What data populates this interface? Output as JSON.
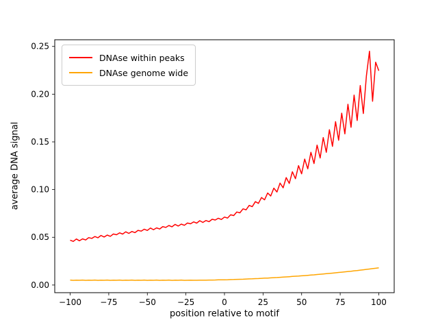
{
  "figure": {
    "background": "#ffffff",
    "frame_color": "#000000"
  },
  "chart_data": {
    "type": "line",
    "title": "",
    "xlabel": "position relative to motif",
    "ylabel": "average DNA signal",
    "xlim": [
      -110,
      110
    ],
    "ylim": [
      -0.008,
      0.257
    ],
    "xticks": [
      -100,
      -75,
      -50,
      -25,
      0,
      25,
      50,
      75,
      100
    ],
    "yticks": [
      0.0,
      0.05,
      0.1,
      0.15,
      0.2,
      0.25
    ],
    "grid": false,
    "legend_position": "upper left",
    "x": [
      -100,
      -98,
      -96,
      -94,
      -92,
      -90,
      -88,
      -86,
      -84,
      -82,
      -80,
      -78,
      -76,
      -74,
      -72,
      -70,
      -68,
      -66,
      -64,
      -62,
      -60,
      -58,
      -56,
      -54,
      -52,
      -50,
      -48,
      -46,
      -44,
      -42,
      -40,
      -38,
      -36,
      -34,
      -32,
      -30,
      -28,
      -26,
      -24,
      -22,
      -20,
      -18,
      -16,
      -14,
      -12,
      -10,
      -8,
      -6,
      -4,
      -2,
      0,
      2,
      4,
      6,
      8,
      10,
      12,
      14,
      16,
      18,
      20,
      22,
      24,
      26,
      28,
      30,
      32,
      34,
      36,
      38,
      40,
      42,
      44,
      46,
      48,
      50,
      52,
      54,
      56,
      58,
      60,
      62,
      64,
      66,
      68,
      70,
      72,
      74,
      76,
      78,
      80,
      82,
      84,
      86,
      88,
      90,
      92,
      94,
      96,
      98,
      100
    ],
    "series": [
      {
        "name": "DNAse within peaks",
        "color": "#ff0000",
        "values": [
          0.047,
          0.0457,
          0.0482,
          0.0464,
          0.0484,
          0.0472,
          0.0497,
          0.0489,
          0.0508,
          0.0495,
          0.052,
          0.0503,
          0.0523,
          0.051,
          0.0535,
          0.0527,
          0.0547,
          0.0534,
          0.0558,
          0.0541,
          0.0561,
          0.0549,
          0.0573,
          0.0565,
          0.0585,
          0.0572,
          0.0597,
          0.058,
          0.0599,
          0.0587,
          0.0612,
          0.0604,
          0.0624,
          0.061,
          0.0635,
          0.0618,
          0.0638,
          0.0626,
          0.065,
          0.0642,
          0.0662,
          0.0649,
          0.0674,
          0.0656,
          0.0676,
          0.0664,
          0.0689,
          0.0681,
          0.07,
          0.0687,
          0.0712,
          0.0702,
          0.0736,
          0.0728,
          0.0765,
          0.0757,
          0.0798,
          0.0788,
          0.0834,
          0.0821,
          0.0874,
          0.0856,
          0.0917,
          0.0893,
          0.0964,
          0.0933,
          0.1015,
          0.0975,
          0.1068,
          0.1019,
          0.1126,
          0.1065,
          0.1187,
          0.1114,
          0.1251,
          0.1165,
          0.132,
          0.1218,
          0.1391,
          0.1273,
          0.1466,
          0.1331,
          0.1545,
          0.1391,
          0.1627,
          0.1453,
          0.1712,
          0.1517,
          0.1801,
          0.1584,
          0.1894,
          0.1653,
          0.199,
          0.1724,
          0.209,
          0.1797,
          0.2193,
          0.245,
          0.1926,
          0.2335,
          0.2245
        ]
      },
      {
        "name": "DNAse genome wide",
        "color": "#ffa500",
        "values": [
          0.0052,
          0.0049,
          0.0051,
          0.005,
          0.0052,
          0.0049,
          0.0051,
          0.005,
          0.0052,
          0.0049,
          0.0051,
          0.005,
          0.0052,
          0.0049,
          0.0051,
          0.005,
          0.0052,
          0.0049,
          0.0051,
          0.005,
          0.0052,
          0.0049,
          0.0051,
          0.005,
          0.0052,
          0.0049,
          0.0051,
          0.005,
          0.0052,
          0.0049,
          0.0051,
          0.005,
          0.0052,
          0.0049,
          0.0051,
          0.005,
          0.0052,
          0.0049,
          0.005,
          0.0051,
          0.005,
          0.005,
          0.0051,
          0.0051,
          0.0051,
          0.0052,
          0.0052,
          0.0053,
          0.0054,
          0.0054,
          0.0055,
          0.0056,
          0.0057,
          0.0058,
          0.0059,
          0.006,
          0.0061,
          0.0063,
          0.0064,
          0.0065,
          0.0067,
          0.0068,
          0.007,
          0.0072,
          0.0073,
          0.0075,
          0.0077,
          0.0079,
          0.0081,
          0.0083,
          0.0085,
          0.0087,
          0.009,
          0.0092,
          0.0094,
          0.0097,
          0.0099,
          0.0102,
          0.0105,
          0.0107,
          0.011,
          0.0113,
          0.0116,
          0.0119,
          0.0122,
          0.0125,
          0.0128,
          0.0132,
          0.0135,
          0.0138,
          0.0142,
          0.0145,
          0.0149,
          0.0152,
          0.0156,
          0.016,
          0.0164,
          0.0168,
          0.0172,
          0.0176,
          0.018
        ]
      }
    ]
  }
}
